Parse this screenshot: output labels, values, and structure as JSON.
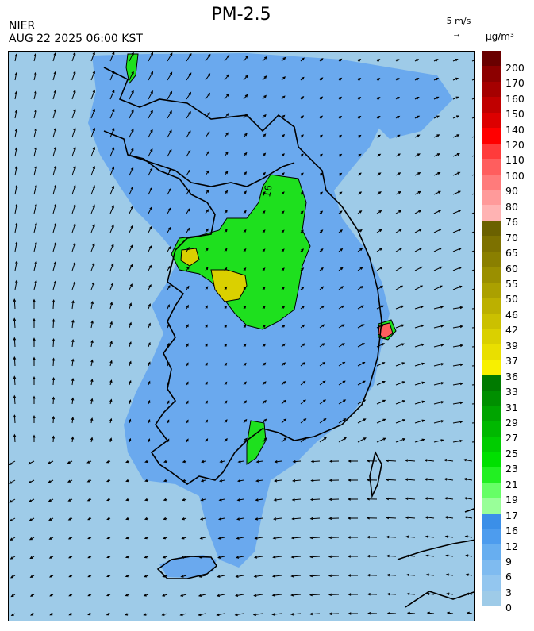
{
  "header": {
    "title": "PM-2.5",
    "agency": "NIER",
    "datetime": "AUG 22 2025 06:00 KST",
    "wind_reference": "5 m/s",
    "wind_reference_arrow": "→",
    "unit": "µg/m³"
  },
  "legend": {
    "levels": [
      {
        "label": "200",
        "color": "#6a0000"
      },
      {
        "label": "170",
        "color": "#8c0000"
      },
      {
        "label": "160",
        "color": "#a50000"
      },
      {
        "label": "150",
        "color": "#c00000"
      },
      {
        "label": "140",
        "color": "#dd0000"
      },
      {
        "label": "120",
        "color": "#ff0000"
      },
      {
        "label": "110",
        "color": "#ff3b3b"
      },
      {
        "label": "100",
        "color": "#ff5e5e"
      },
      {
        "label": "90",
        "color": "#ff7b7b"
      },
      {
        "label": "80",
        "color": "#ff9a9a"
      },
      {
        "label": "76",
        "color": "#ffb3b3"
      },
      {
        "label": "70",
        "color": "#6b6100"
      },
      {
        "label": "65",
        "color": "#7d7100"
      },
      {
        "label": "60",
        "color": "#8a7f00"
      },
      {
        "label": "55",
        "color": "#9a8f00"
      },
      {
        "label": "50",
        "color": "#aba000"
      },
      {
        "label": "46",
        "color": "#bcb000"
      },
      {
        "label": "42",
        "color": "#cbc000"
      },
      {
        "label": "39",
        "color": "#dad000"
      },
      {
        "label": "37",
        "color": "#e9df00"
      },
      {
        "label": "36",
        "color": "#f8f000"
      },
      {
        "label": "33",
        "color": "#007a00"
      },
      {
        "label": "31",
        "color": "#008f00"
      },
      {
        "label": "29",
        "color": "#00a400"
      },
      {
        "label": "27",
        "color": "#00b800"
      },
      {
        "label": "25",
        "color": "#00cc00"
      },
      {
        "label": "23",
        "color": "#00e000"
      },
      {
        "label": "21",
        "color": "#22f022"
      },
      {
        "label": "19",
        "color": "#66ff66"
      },
      {
        "label": "17",
        "color": "#99ff99"
      },
      {
        "label": "16",
        "color": "#3b8fe8"
      },
      {
        "label": "12",
        "color": "#4d9cee"
      },
      {
        "label": "9",
        "color": "#67aef0"
      },
      {
        "label": "6",
        "color": "#7fbbf0"
      },
      {
        "label": "3",
        "color": "#93c6ef"
      },
      {
        "label": "0",
        "color": "#9ecbe8"
      }
    ]
  },
  "map": {
    "sea_color": "#9ecbe8",
    "low_color": "#6aa9ee",
    "green_color": "#1ee01e",
    "yellow_color": "#dad000",
    "red_color": "#ff5e5e",
    "contour_label": "16"
  }
}
